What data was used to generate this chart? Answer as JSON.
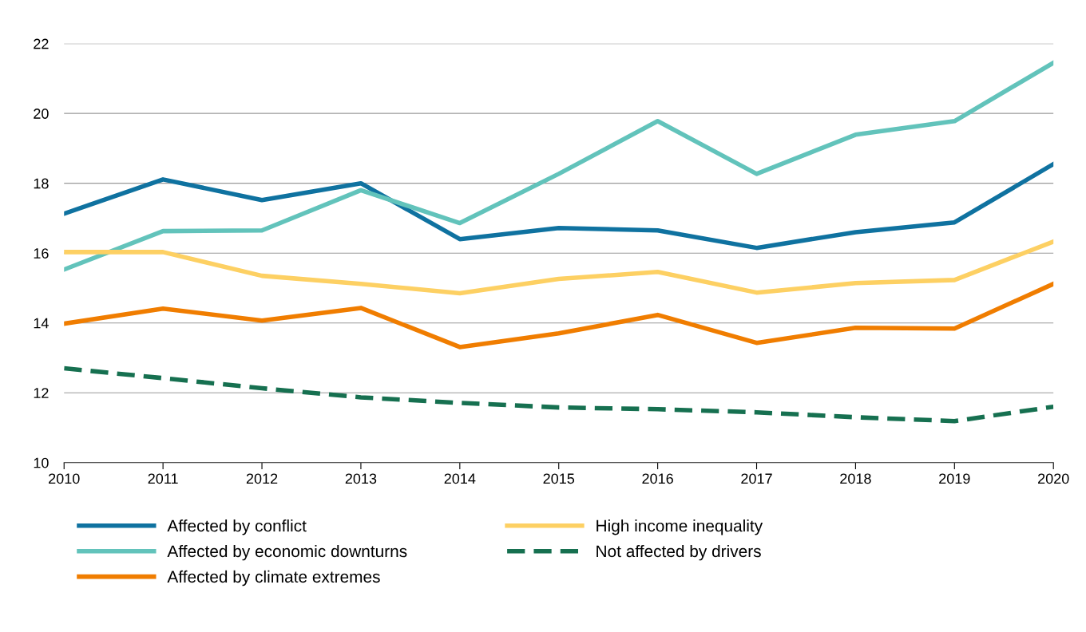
{
  "chart_data": {
    "type": "line",
    "x": [
      2010,
      2011,
      2012,
      2013,
      2014,
      2015,
      2016,
      2017,
      2018,
      2019,
      2020
    ],
    "xlim": [
      2010,
      2020
    ],
    "xticks": [
      2010,
      2011,
      2012,
      2013,
      2014,
      2015,
      2016,
      2017,
      2018,
      2019,
      2020
    ],
    "ylim": [
      10,
      22
    ],
    "yticks": [
      10,
      12,
      14,
      16,
      18,
      20,
      22
    ],
    "grid": "y",
    "legend": "bottom",
    "marker": "none",
    "series": [
      {
        "name": "Affected by conflict",
        "color": "#0f72a0",
        "line_style": "solid",
        "values": [
          17.13,
          18.11,
          17.52,
          18.0,
          16.4,
          16.72,
          16.65,
          16.15,
          16.6,
          16.88,
          18.55
        ]
      },
      {
        "name": "Affected by economic downturns",
        "color": "#62c3bb",
        "line_style": "solid",
        "values": [
          15.53,
          16.63,
          16.65,
          17.8,
          16.86,
          18.27,
          19.78,
          18.27,
          19.39,
          19.78,
          21.45
        ]
      },
      {
        "name": "Affected by climate extremes",
        "color": "#f07d00",
        "line_style": "solid",
        "values": [
          13.98,
          14.41,
          14.07,
          14.43,
          13.31,
          13.7,
          14.23,
          13.43,
          13.86,
          13.84,
          15.12
        ]
      },
      {
        "name": "High income inequality",
        "color": "#fdd063",
        "line_style": "solid",
        "values": [
          16.03,
          16.03,
          15.35,
          15.12,
          14.85,
          15.26,
          15.46,
          14.87,
          15.14,
          15.23,
          16.33
        ]
      },
      {
        "name": "Not affected by drivers",
        "color": "#167050",
        "line_style": "dashed",
        "values": [
          12.7,
          12.42,
          12.13,
          11.87,
          11.71,
          11.58,
          11.53,
          11.44,
          11.3,
          11.19,
          11.6
        ]
      }
    ]
  }
}
